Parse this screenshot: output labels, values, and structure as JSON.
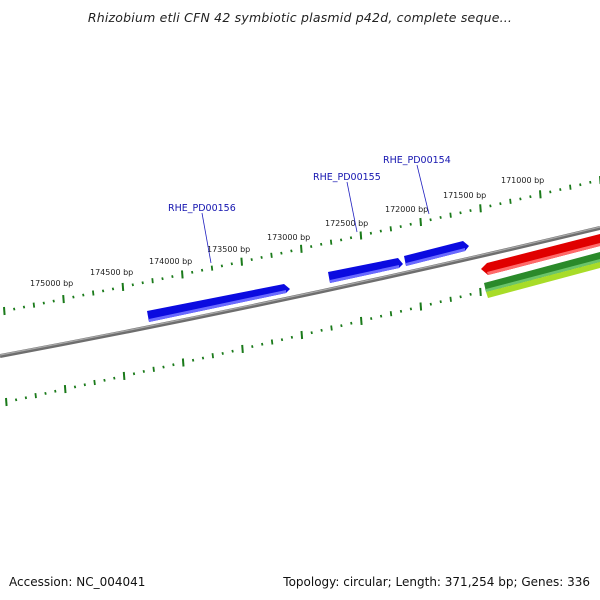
{
  "title": "Rhizobium etli CFN 42 symbiotic plasmid p42d, complete seque...",
  "footer": {
    "accession": "Accession: NC_004041",
    "summary": "Topology: circular; Length: 371,254 bp; Genes: 336"
  },
  "colors": {
    "backbone": "#7a7a7a",
    "ticks": "#1a7a1a",
    "gene_forward": "#0a0ae0",
    "gene_red": "#e00000",
    "gene_darkgreen": "#2a8a2a",
    "gene_lightgreen": "#b0e030",
    "label_blue": "#1515b0"
  },
  "scale_labels": [
    "175000 bp",
    "174500 bp",
    "174000 bp",
    "173500 bp",
    "173000 bp",
    "172500 bp",
    "172000 bp",
    "171500 bp",
    "171000 bp"
  ],
  "gene_labels": [
    "RHE_PD00156",
    "RHE_PD00155",
    "RHE_PD00154"
  ]
}
